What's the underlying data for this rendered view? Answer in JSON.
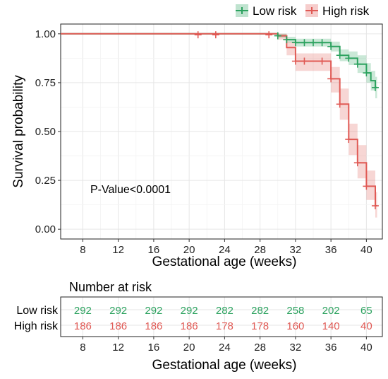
{
  "chart_data": {
    "type": "line",
    "subtype": "kaplan-meier survival curve",
    "title": "",
    "xlabel": "Gestational age (weeks)",
    "ylabel": "Survival probability",
    "xlim": [
      5.5,
      41.8
    ],
    "ylim": [
      -0.05,
      1.05
    ],
    "x_ticks": [
      8,
      12,
      16,
      20,
      24,
      28,
      32,
      36,
      40
    ],
    "y_ticks": [
      {
        "value": 0.0,
        "label": "0.00"
      },
      {
        "value": 0.25,
        "label": "0.25"
      },
      {
        "value": 0.5,
        "label": "0.50"
      },
      {
        "value": 0.75,
        "label": "0.75"
      },
      {
        "value": 1.0,
        "label": "1.00"
      }
    ],
    "grid": true,
    "legend_position": "top-right",
    "annotation": "P-Value<0.0001",
    "series": [
      {
        "name": "Low risk",
        "color": "#2ca25f",
        "steps": [
          [
            5.5,
            1.0
          ],
          [
            30,
            0.99
          ],
          [
            31,
            0.97
          ],
          [
            32,
            0.955
          ],
          [
            36,
            0.935
          ],
          [
            37,
            0.89
          ],
          [
            38,
            0.875
          ],
          [
            39,
            0.845
          ],
          [
            40,
            0.8
          ],
          [
            40.5,
            0.76
          ],
          [
            41,
            0.725
          ],
          [
            41.2,
            0.725
          ]
        ],
        "ci_lower": [
          1.0,
          0.98,
          0.955,
          0.935,
          0.91,
          0.86,
          0.84,
          0.8,
          0.75,
          0.71,
          0.67,
          0.67
        ],
        "ci_upper": [
          1.0,
          1.0,
          0.985,
          0.975,
          0.96,
          0.92,
          0.91,
          0.89,
          0.85,
          0.81,
          0.78,
          0.78
        ],
        "censor": [
          [
            30,
            0.99
          ],
          [
            31,
            0.97
          ],
          [
            32,
            0.955
          ],
          [
            33,
            0.955
          ],
          [
            34,
            0.955
          ],
          [
            35,
            0.955
          ],
          [
            36,
            0.935
          ],
          [
            37,
            0.89
          ],
          [
            38,
            0.875
          ],
          [
            39,
            0.845
          ],
          [
            40,
            0.8
          ],
          [
            41,
            0.725
          ]
        ]
      },
      {
        "name": "High risk",
        "color": "#e05a55",
        "steps": [
          [
            5.5,
            1.0
          ],
          [
            30,
            0.99
          ],
          [
            31,
            0.93
          ],
          [
            32,
            0.86
          ],
          [
            36,
            0.77
          ],
          [
            37,
            0.64
          ],
          [
            38,
            0.46
          ],
          [
            39,
            0.34
          ],
          [
            40,
            0.22
          ],
          [
            41,
            0.12
          ],
          [
            41.2,
            0.12
          ]
        ],
        "ci_lower": [
          1.0,
          0.97,
          0.89,
          0.81,
          0.7,
          0.56,
          0.38,
          0.26,
          0.15,
          0.06,
          0.06
        ],
        "ci_upper": [
          1.0,
          1.0,
          0.96,
          0.9,
          0.83,
          0.72,
          0.54,
          0.43,
          0.3,
          0.19,
          0.19
        ],
        "censor": [
          [
            21,
            0.995
          ],
          [
            23,
            0.995
          ],
          [
            29,
            0.995
          ],
          [
            32,
            0.86
          ],
          [
            33,
            0.86
          ],
          [
            35,
            0.86
          ],
          [
            36,
            0.77
          ],
          [
            37,
            0.64
          ],
          [
            38,
            0.46
          ],
          [
            39,
            0.34
          ],
          [
            40,
            0.22
          ],
          [
            41,
            0.12
          ]
        ]
      }
    ],
    "risk_table": {
      "title": "Number at risk",
      "xlabel": "Gestational age (weeks)",
      "x": [
        8,
        12,
        16,
        20,
        24,
        28,
        32,
        36,
        40
      ],
      "rows": [
        {
          "name": "Low risk",
          "color": "#2ca25f",
          "values": [
            "292",
            "292",
            "292",
            "292",
            "282",
            "282",
            "258",
            "202",
            "65"
          ]
        },
        {
          "name": "High risk",
          "color": "#e05a55",
          "values": [
            "186",
            "186",
            "186",
            "186",
            "178",
            "178",
            "160",
            "140",
            "40"
          ]
        }
      ]
    }
  }
}
